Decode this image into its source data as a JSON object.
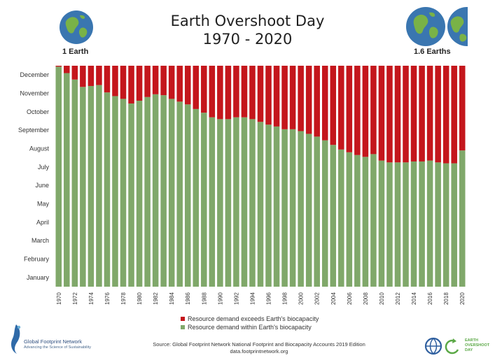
{
  "header": {
    "title": "Earth Overshoot Day",
    "subtitle": "1970 - 2020",
    "left_label": "1 Earth",
    "right_label": "1.6 Earths"
  },
  "legend": {
    "exceeds": "Resource demand exceeds Earth's biocapacity",
    "within": "Resource demand within Earth's biocapacity"
  },
  "source": {
    "line1": "Source: Global Footprint Network National Footprint and Biocapacity Accounts 2019 Edition",
    "line2": "data.footprintnetwork.org"
  },
  "logos": {
    "left_name": "Global Footprint Network",
    "left_tagline": "Advancing the Science of Sustainability",
    "right_line1": "EARTH",
    "right_line2": "OVERSHOOT",
    "right_line3": "DAY"
  },
  "colors": {
    "green": "#80a86a",
    "red": "#c4161c",
    "blue_earth": "#3a76b0",
    "land_green": "#79b247"
  },
  "icons": [
    "earth-globe-icon",
    "global-footprint-network-logo-icon",
    "earth-overshoot-day-logo-icon"
  ],
  "chart_data": {
    "type": "bar",
    "stacked": true,
    "title": "",
    "xlabel": "",
    "ylabel": "",
    "y_months": [
      "January",
      "February",
      "March",
      "April",
      "May",
      "June",
      "July",
      "August",
      "September",
      "October",
      "November",
      "December"
    ],
    "ylim": [
      0,
      12
    ],
    "x": [
      1970,
      1971,
      1972,
      1973,
      1974,
      1975,
      1976,
      1977,
      1978,
      1979,
      1980,
      1981,
      1982,
      1983,
      1984,
      1985,
      1986,
      1987,
      1988,
      1989,
      1990,
      1991,
      1992,
      1993,
      1994,
      1995,
      1996,
      1997,
      1998,
      1999,
      2000,
      2001,
      2002,
      2003,
      2004,
      2005,
      2006,
      2007,
      2008,
      2009,
      2010,
      2011,
      2012,
      2013,
      2014,
      2015,
      2016,
      2017,
      2018,
      2019,
      2020
    ],
    "x_tick_labels": [
      "1970",
      "1972",
      "1974",
      "1976",
      "1978",
      "1980",
      "1982",
      "1984",
      "1986",
      "1988",
      "1990",
      "1992",
      "1994",
      "1996",
      "1998",
      "2000",
      "2002",
      "2004",
      "2006",
      "2008",
      "2010",
      "2012",
      "2014",
      "2016",
      "2018",
      "2020"
    ],
    "series": [
      {
        "name": "Resource demand within Earth's biocapacity",
        "color": "#80a86a",
        "values": [
          11.95,
          11.6,
          11.25,
          10.85,
          10.9,
          10.95,
          10.55,
          10.35,
          10.2,
          9.95,
          10.1,
          10.3,
          10.45,
          10.4,
          10.2,
          10.05,
          9.9,
          9.65,
          9.45,
          9.2,
          9.1,
          9.1,
          9.2,
          9.2,
          9.1,
          8.95,
          8.8,
          8.7,
          8.55,
          8.55,
          8.45,
          8.3,
          8.15,
          7.95,
          7.7,
          7.45,
          7.3,
          7.15,
          7.05,
          7.2,
          6.85,
          6.75,
          6.75,
          6.75,
          6.8,
          6.8,
          6.85,
          6.75,
          6.7,
          6.7,
          7.4
        ]
      },
      {
        "name": "Resource demand exceeds Earth's biocapacity",
        "color": "#c4161c",
        "values": [
          0.05,
          0.4,
          0.75,
          1.15,
          1.1,
          1.05,
          1.45,
          1.65,
          1.8,
          2.05,
          1.9,
          1.7,
          1.55,
          1.6,
          1.8,
          1.95,
          2.1,
          2.35,
          2.55,
          2.8,
          2.9,
          2.9,
          2.8,
          2.8,
          2.9,
          3.05,
          3.2,
          3.3,
          3.45,
          3.45,
          3.55,
          3.7,
          3.85,
          4.05,
          4.3,
          4.55,
          4.7,
          4.85,
          4.95,
          4.8,
          5.15,
          5.25,
          5.25,
          5.25,
          5.2,
          5.2,
          5.15,
          5.25,
          5.3,
          5.3,
          4.6
        ]
      }
    ],
    "grid": false,
    "legend_position": "bottom"
  }
}
